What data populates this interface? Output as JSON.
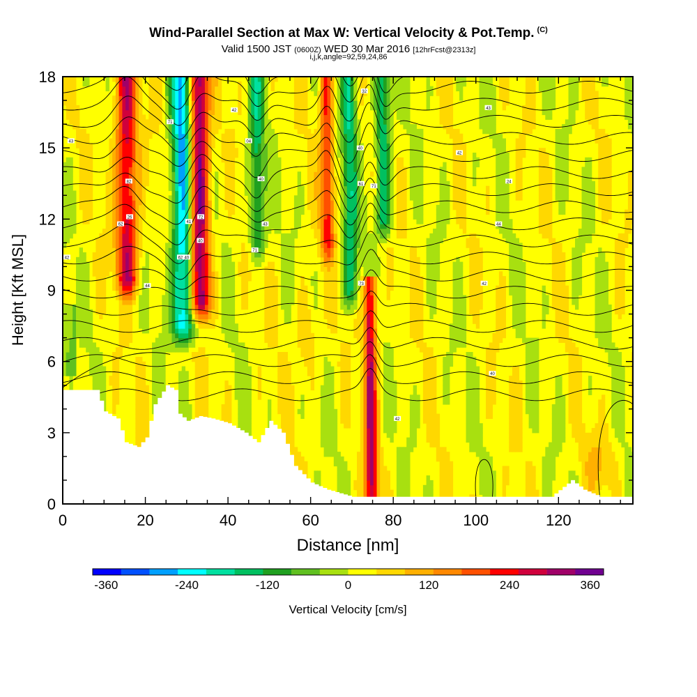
{
  "header": {
    "title": "Wind-Parallel Section at Max W: Vertical Velocity & Pot.Temp.",
    "copyright": "(C)",
    "valid_prefix": "Valid 1500 JST",
    "valid_utc": "(0600Z)",
    "valid_date": "WED 30 Mar 2016",
    "forecast": "[12hrFcst@2313z]",
    "indices": "i,j,k,angle=92,59,24,86"
  },
  "chart_data": {
    "type": "heatmap",
    "xlabel": "Distance [nm]",
    "ylabel": "Height [Kft MSL]",
    "xlim": [
      0,
      138
    ],
    "ylim": [
      0,
      18
    ],
    "x_ticks": [
      0,
      20,
      40,
      60,
      80,
      100,
      120
    ],
    "y_ticks": [
      0,
      3,
      6,
      9,
      12,
      15,
      18
    ],
    "colorbar": {
      "label": "Vertical Velocity [cm/s]",
      "range": [
        -380,
        380
      ],
      "tick_values": [
        -360,
        -240,
        -120,
        0,
        120,
        240,
        360
      ],
      "tick_labels": [
        "-360",
        "-240",
        "-120",
        "0",
        "120",
        "240",
        "360"
      ],
      "colors": [
        "#0000ff",
        "#0050ff",
        "#00a0ff",
        "#00ffff",
        "#00e0a0",
        "#00c060",
        "#20a020",
        "#60c020",
        "#a8e010",
        "#ffff00",
        "#ffd800",
        "#ffb000",
        "#ff8800",
        "#ff5000",
        "#ff0000",
        "#d0003c",
        "#a00068",
        "#700090"
      ]
    },
    "bands_w": [
      {
        "x": 15.5,
        "width": 2.6,
        "w": 270,
        "top": 18,
        "bottom": 9.5
      },
      {
        "x": 29,
        "width": 2.6,
        "w": -290,
        "top": 18,
        "bottom": 7.5
      },
      {
        "x": 33,
        "width": 2.4,
        "w": 340,
        "top": 18,
        "bottom": 8.5
      },
      {
        "x": 47,
        "width": 1.8,
        "w": -160,
        "top": 18,
        "bottom": 11
      },
      {
        "x": 64,
        "width": 1.6,
        "w": 200,
        "top": 18,
        "bottom": 11
      },
      {
        "x": 69.5,
        "width": 1.8,
        "w": -170,
        "top": 18,
        "bottom": 9
      },
      {
        "x": 74.5,
        "width": 1.5,
        "w": 280,
        "top": 9.5,
        "bottom": 0
      },
      {
        "x": 77.5,
        "width": 1.8,
        "w": -190,
        "top": 18,
        "bottom": 12
      }
    ],
    "terrain_top": [
      [
        0,
        4.8
      ],
      [
        8,
        4.8
      ],
      [
        10,
        3.9
      ],
      [
        13,
        3.6
      ],
      [
        15,
        2.6
      ],
      [
        18,
        2.4
      ],
      [
        20,
        2.8
      ],
      [
        22,
        4.2
      ],
      [
        25,
        5.0
      ],
      [
        27,
        4.8
      ],
      [
        28,
        3.8
      ],
      [
        30,
        3.5
      ],
      [
        33,
        3.7
      ],
      [
        36,
        3.6
      ],
      [
        40,
        3.4
      ],
      [
        44,
        3.0
      ],
      [
        47,
        2.6
      ],
      [
        50,
        3.5
      ],
      [
        53,
        3.0
      ],
      [
        56,
        1.6
      ],
      [
        60,
        0.9
      ],
      [
        64,
        0.6
      ],
      [
        70,
        0.3
      ],
      [
        80,
        0.3
      ],
      [
        118,
        0.3
      ],
      [
        123,
        1.0
      ],
      [
        126,
        0.6
      ],
      [
        130,
        0.3
      ],
      [
        138,
        0.3
      ]
    ],
    "theta_contour_labels": [
      "82",
      "62",
      "26",
      "44",
      "71",
      "72",
      "41",
      "40",
      "62",
      "42",
      "04",
      "40",
      "43",
      "71",
      "32",
      "40",
      "61",
      "71",
      "73",
      "42",
      "24",
      "44",
      "42",
      "40",
      "42",
      "43",
      "43",
      "42",
      "40"
    ]
  },
  "colors": {
    "frame": "#000000",
    "background": "#ffffff",
    "terrain": "#ffffff"
  }
}
